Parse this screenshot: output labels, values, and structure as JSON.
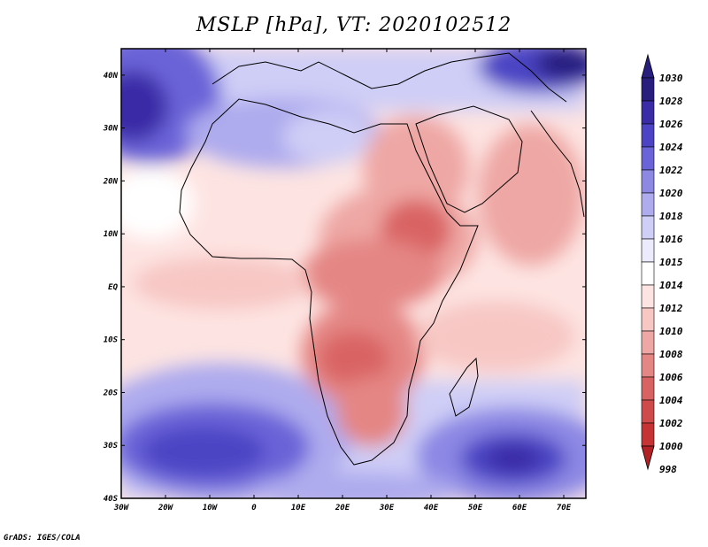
{
  "title": "MSLP [hPa], VT: 2020102512",
  "credit": "GrADS: IGES/COLA",
  "map": {
    "lon_labels": [
      "30W",
      "20W",
      "10W",
      "0",
      "10E",
      "20E",
      "30E",
      "40E",
      "50E",
      "60E",
      "70E"
    ],
    "lat_labels": [
      "40N",
      "30N",
      "20N",
      "10N",
      "EQ",
      "10S",
      "20S",
      "30S",
      "40S"
    ],
    "lon_range": [
      -30,
      75
    ],
    "lat_range": [
      -40,
      45
    ]
  },
  "legend": {
    "levels": [
      "1030",
      "1028",
      "1026",
      "1024",
      "1022",
      "1020",
      "1018",
      "1016",
      "1015",
      "1014",
      "1012",
      "1010",
      "1008",
      "1006",
      "1004",
      "1002",
      "1000",
      "998"
    ],
    "colors": {
      "1028": "#281e7d",
      "1026": "#3a2ca6",
      "1024": "#4c44c4",
      "1022": "#6a64d8",
      "1020": "#8c88e4",
      "1018": "#aeabee",
      "1016": "#cfcef6",
      "1015": "#ebebfc",
      "1014": "#ffffff",
      "1012": "#fde4e2",
      "1010": "#f7c7c4",
      "1008": "#eea7a4",
      "1006": "#e48684",
      "1004": "#d96363",
      "1002": "#cf4a4b",
      "1000": "#c53335",
      "998": "#b22126"
    }
  }
}
